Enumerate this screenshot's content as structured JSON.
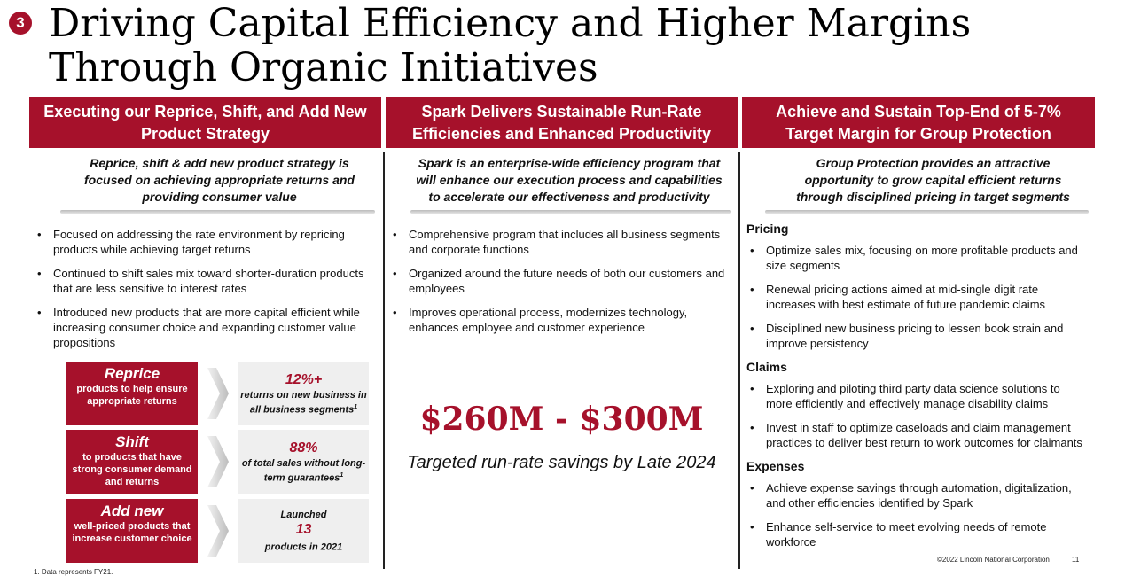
{
  "slide": {
    "number": "3",
    "title": "Driving Capital Efficiency and Higher Margins Through Organic Initiatives"
  },
  "columns": [
    {
      "header": "Executing our Reprice, Shift, and Add New Product Strategy",
      "subtitle": "Reprice, shift & add new product strategy is focused on achieving appropriate returns and providing consumer value",
      "bullets": [
        "Focused on addressing the rate environment by repricing products while achieving target returns",
        "Continued to shift sales mix toward shorter-duration products that are less sensitive to interest rates",
        "Introduced new products that are more capital efficient while increasing consumer choice and expanding customer value propositions"
      ],
      "strategy": [
        {
          "title": "Reprice",
          "text": "products to help ensure appropriate returns",
          "pre": "",
          "metric": "12%+",
          "post": "returns on new business in all business segments",
          "sup": "1"
        },
        {
          "title": "Shift",
          "text": "to products that have strong consumer demand and returns",
          "pre": "",
          "metric": "88%",
          "post": "of total sales without long-term guarantees",
          "sup": "1"
        },
        {
          "title": "Add new",
          "text": "well-priced products that increase customer choice",
          "pre": "Launched",
          "metric": "13",
          "post": "products in 2021",
          "sup": ""
        }
      ]
    },
    {
      "header": "Spark Delivers Sustainable Run-Rate Efficiencies and Enhanced Productivity",
      "subtitle": "Spark is an enterprise-wide efficiency program that will enhance our execution process and capabilities to accelerate our effectiveness and productivity",
      "bullets": [
        "Comprehensive program that includes all business segments and corporate functions",
        "Organized around the future needs of both our customers and employees",
        "Improves operational process, modernizes technology, enhances employee and customer experience"
      ],
      "big_figure": "$260M - $300M",
      "tagline": "Targeted run-rate savings by Late 2024"
    },
    {
      "header": "Achieve and Sustain Top-End of 5-7% Target Margin for Group Protection",
      "subtitle": "Group Protection provides an attractive opportunity to grow capital efficient returns through disciplined pricing in target segments",
      "sections": [
        {
          "title": "Pricing",
          "bullets": [
            "Optimize sales mix, focusing on more profitable products and size segments",
            "Renewal pricing actions aimed at mid-single digit rate increases with best estimate of future pandemic claims",
            "Disciplined new business pricing to lessen book strain and improve persistency"
          ]
        },
        {
          "title": "Claims",
          "bullets": [
            "Exploring and piloting third party data science solutions to more efficiently and effectively manage disability claims",
            "Invest in staff to optimize caseloads and claim management practices to deliver best return to work outcomes for claimants"
          ]
        },
        {
          "title": "Expenses",
          "bullets": [
            "Achieve expense savings through automation, digitalization, and other efficiencies identified by Spark",
            "Enhance self-service to meet evolving needs of remote workforce"
          ]
        }
      ]
    }
  ],
  "footer": {
    "footnote": "1. Data represents FY21.",
    "copyright": "©2022 Lincoln National Corporation",
    "page": "11"
  },
  "colors": {
    "brand": "#a6112b"
  }
}
